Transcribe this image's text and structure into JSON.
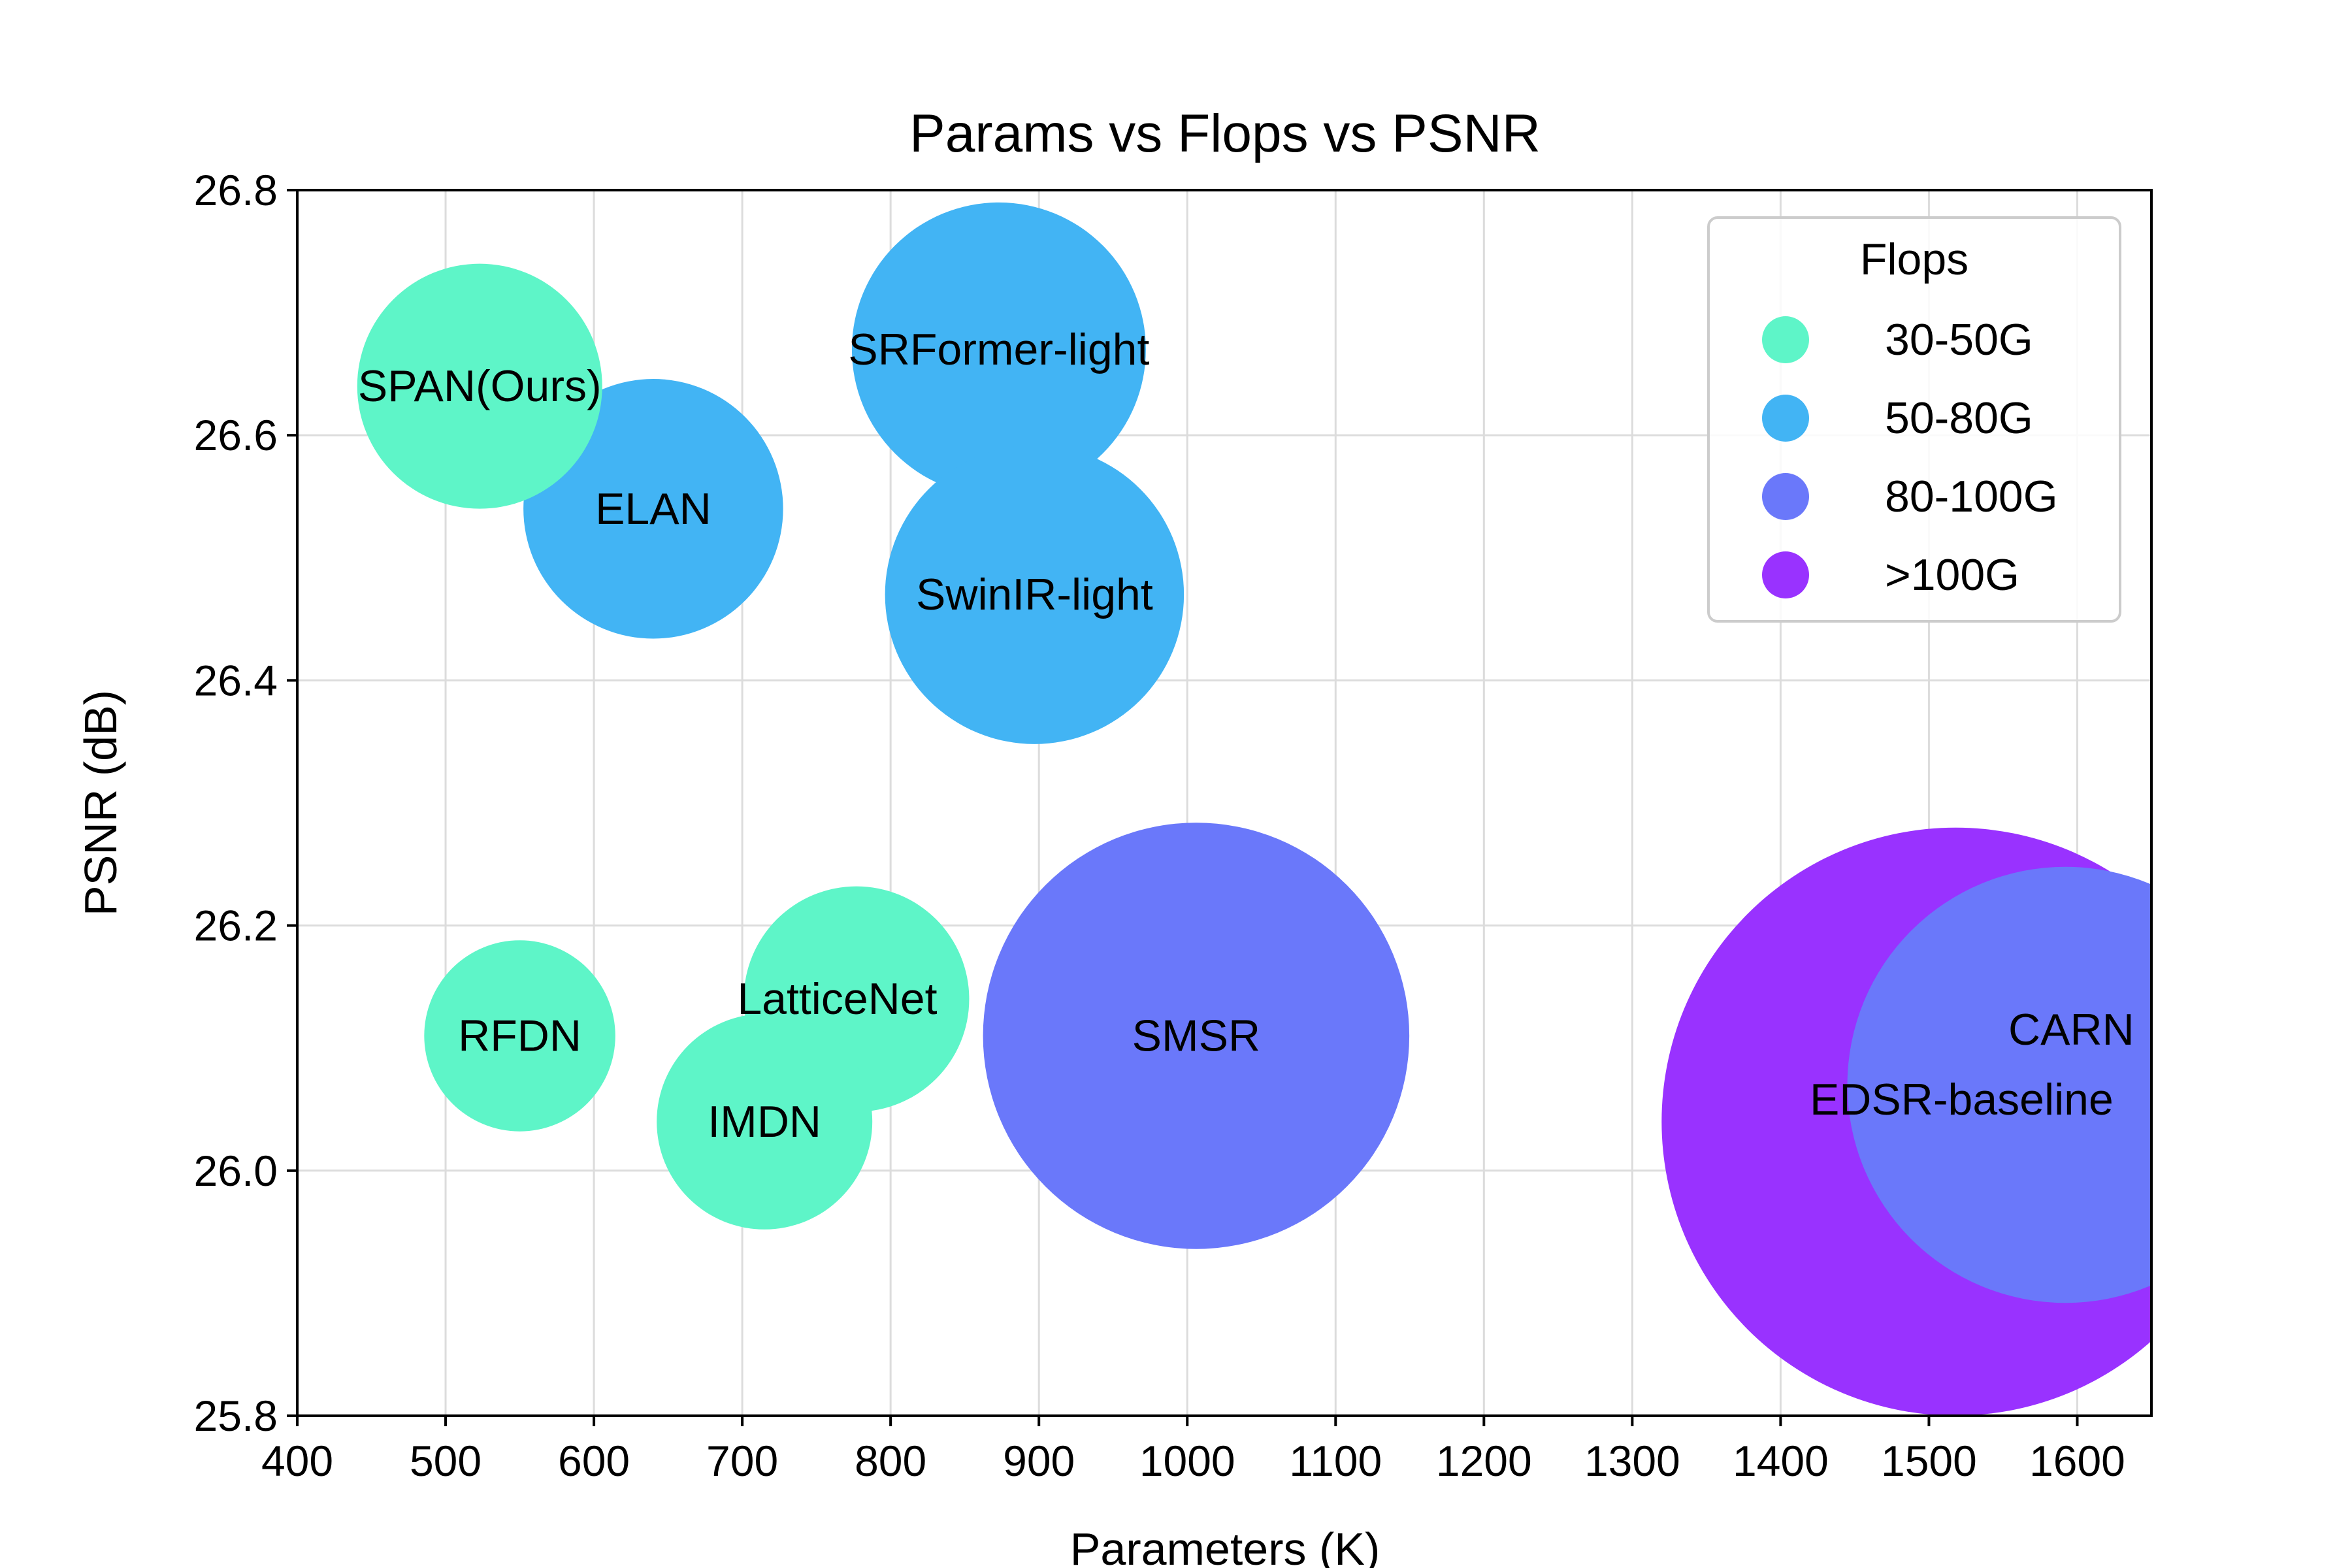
{
  "chart_data": {
    "type": "scatter",
    "title": "Params vs Flops vs PSNR",
    "xlabel": "Parameters (K)",
    "ylabel": "PSNR (dB)",
    "xlim": [
      400,
      1650
    ],
    "ylim": [
      25.8,
      26.8
    ],
    "xticks": [
      400,
      500,
      600,
      700,
      800,
      900,
      1000,
      1100,
      1200,
      1300,
      1400,
      1500,
      1600
    ],
    "yticks": [
      "25.8",
      "26.0",
      "26.2",
      "26.4",
      "26.6",
      "26.8"
    ],
    "grid": true,
    "legend": {
      "title": "Flops",
      "placement": "top-right",
      "entries": [
        {
          "label": "30-50G",
          "color": "#5ef5c8"
        },
        {
          "label": "50-80G",
          "color": "#42b4f4"
        },
        {
          "label": "80-100G",
          "color": "#6a78fa"
        },
        {
          "label": ">100G",
          "color": "#9932ff"
        }
      ]
    },
    "points": [
      {
        "name": "EDSR-baseline",
        "params": 1518,
        "psnr": 26.04,
        "flops_group": ">100G",
        "color": "#9932ff",
        "size": 1.2
      },
      {
        "name": "CARN",
        "params": 1592,
        "psnr": 26.07,
        "flops_group": "80-100G",
        "color": "#6a78fa",
        "size": 0.89
      },
      {
        "name": "SMSR",
        "params": 1006,
        "psnr": 26.11,
        "flops_group": "80-100G",
        "color": "#6a78fa",
        "size": 0.87
      },
      {
        "name": "SRFormer-light",
        "params": 873,
        "psnr": 26.67,
        "flops_group": "50-80G",
        "color": "#42b4f4",
        "size": 0.6
      },
      {
        "name": "SwinIR-light",
        "params": 897,
        "psnr": 26.47,
        "flops_group": "50-80G",
        "color": "#42b4f4",
        "size": 0.61
      },
      {
        "name": "ELAN",
        "params": 640,
        "psnr": 26.54,
        "flops_group": "50-80G",
        "color": "#42b4f4",
        "size": 0.53
      },
      {
        "name": "SPAN(Ours)",
        "params": 523,
        "psnr": 26.64,
        "flops_group": "30-50G",
        "color": "#5ef5c8",
        "size": 0.5
      },
      {
        "name": "LatticeNet",
        "params": 777,
        "psnr": 26.14,
        "flops_group": "30-50G",
        "color": "#5ef5c8",
        "size": 0.46
      },
      {
        "name": "IMDN",
        "params": 715,
        "psnr": 26.04,
        "flops_group": "30-50G",
        "color": "#5ef5c8",
        "size": 0.44
      },
      {
        "name": "RFDN",
        "params": 550,
        "psnr": 26.11,
        "flops_group": "30-50G",
        "color": "#5ef5c8",
        "size": 0.39
      }
    ]
  }
}
